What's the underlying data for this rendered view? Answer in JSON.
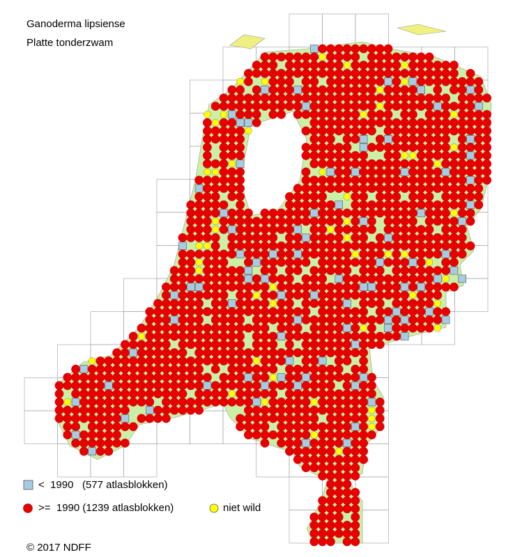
{
  "header": {
    "title": "Ganoderma lipsiense",
    "subtitle": "Platte tonderzwam"
  },
  "legend": {
    "before": "<  1990   (577 atlasblokken)",
    "after": ">=  1990 (1239 atlasblokken)",
    "not_wild": "niet wild"
  },
  "footer": {
    "copyright": "© 2017 NDFF"
  }
}
